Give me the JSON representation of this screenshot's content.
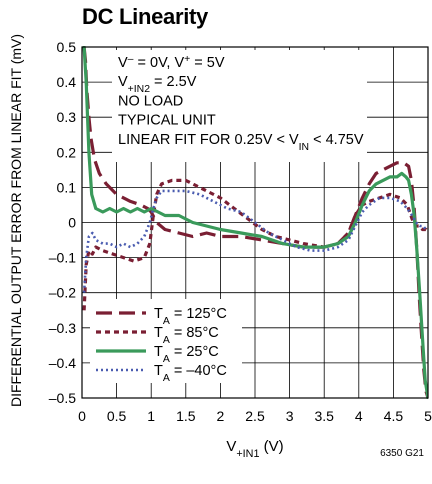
{
  "page": {
    "title": "DC Linearity",
    "figure_note": "6350 G21"
  },
  "chart_data": {
    "type": "line",
    "title": "DC Linearity",
    "xlabel": "V+IN1 (V)",
    "xlabel_main": "V",
    "xlabel_sub": "+IN1",
    "xlabel_unit": " (V)",
    "ylabel": "DIFFERENTIAL OUTPUT ERROR FROM LINEAR FIT (mV)",
    "xlim": [
      0,
      5
    ],
    "ylim": [
      -0.5,
      0.5
    ],
    "x_ticks": [
      0,
      0.5,
      1,
      1.5,
      2,
      2.5,
      3,
      3.5,
      4,
      4.5,
      5
    ],
    "x_tick_labels": [
      "0",
      "0.5",
      "1",
      "1.5",
      "2",
      "2.5",
      "3",
      "3.5",
      "4",
      "4.5",
      "5"
    ],
    "y_ticks": [
      0.5,
      0.4,
      0.3,
      0.2,
      0.1,
      0,
      -0.1,
      -0.2,
      -0.3,
      -0.4,
      -0.5
    ],
    "y_tick_labels": [
      "0.5",
      "0.4",
      "0.3",
      "0.2",
      "0.1",
      "0",
      "–0.1",
      "–0.2",
      "–0.3",
      "–0.4",
      "–0.5"
    ],
    "grid": true,
    "annotations": [
      [
        {
          "t": "V"
        },
        {
          "t": "–",
          "sup": true
        },
        {
          "t": " = 0V, V"
        },
        {
          "t": "+",
          "sup": true
        },
        {
          "t": " = 5V"
        }
      ],
      [
        {
          "t": "V"
        },
        {
          "t": "+IN2",
          "sub": true
        },
        {
          "t": " = 2.5V"
        }
      ],
      [
        {
          "t": "NO LOAD"
        }
      ],
      [
        {
          "t": "TYPICAL UNIT"
        }
      ],
      [
        {
          "t": "LINEAR FIT FOR 0.25V < V"
        },
        {
          "t": "IN",
          "sub": true
        },
        {
          "t": " < 4.75V"
        }
      ]
    ],
    "legend_position": "bottom-left",
    "series": [
      {
        "name": "TA = 125°C",
        "legend": [
          {
            "t": "T"
          },
          {
            "t": "A",
            "sub": true
          },
          {
            "t": " = 125°C"
          }
        ],
        "color": "#7a1f33",
        "style": "longdash",
        "x": [
          0.03,
          0.05,
          0.07,
          0.1,
          0.13,
          0.18,
          0.25,
          0.35,
          0.5,
          0.7,
          0.85,
          0.95,
          1.0,
          1.08,
          1.2,
          1.4,
          1.6,
          1.8,
          2.0,
          2.3,
          2.6,
          2.9,
          3.2,
          3.5,
          3.7,
          3.85,
          3.95,
          4.05,
          4.15,
          4.25,
          4.35,
          4.45,
          4.55,
          4.65,
          4.72,
          4.76,
          4.8,
          4.84,
          4.87,
          4.9,
          4.94,
          4.97,
          5.0
        ],
        "y": [
          0.5,
          0.46,
          0.38,
          0.3,
          0.24,
          0.18,
          0.14,
          0.11,
          0.08,
          0.06,
          0.05,
          0.04,
          0.03,
          0.0,
          -0.02,
          -0.03,
          -0.04,
          -0.03,
          -0.04,
          -0.04,
          -0.05,
          -0.06,
          -0.07,
          -0.07,
          -0.06,
          -0.03,
          0.02,
          0.07,
          0.11,
          0.14,
          0.15,
          0.16,
          0.17,
          0.17,
          0.16,
          0.12,
          0.04,
          -0.08,
          -0.2,
          -0.3,
          -0.42,
          -0.48,
          -0.5
        ]
      },
      {
        "name": "TA = 85°C",
        "legend": [
          {
            "t": "T"
          },
          {
            "t": "A",
            "sub": true
          },
          {
            "t": " = 85°C"
          }
        ],
        "color": "#7a1f33",
        "style": "shortdash",
        "x": [
          0.03,
          0.06,
          0.1,
          0.15,
          0.2,
          0.3,
          0.45,
          0.6,
          0.75,
          0.9,
          0.98,
          1.03,
          1.08,
          1.15,
          1.3,
          1.5,
          1.8,
          2.0,
          2.2,
          2.4,
          2.6,
          2.8,
          3.0,
          3.2,
          3.5,
          3.7,
          3.85,
          3.95,
          4.05,
          4.15,
          4.3,
          4.45,
          4.6,
          4.7,
          4.77,
          4.83,
          4.87,
          4.92,
          4.97,
          5.0
        ],
        "y": [
          -0.25,
          -0.12,
          -0.08,
          -0.09,
          -0.07,
          -0.08,
          -0.09,
          -0.1,
          -0.11,
          -0.1,
          -0.06,
          0.02,
          0.08,
          0.11,
          0.12,
          0.12,
          0.09,
          0.07,
          0.04,
          0.01,
          -0.02,
          -0.04,
          -0.05,
          -0.06,
          -0.07,
          -0.06,
          -0.03,
          0.02,
          0.05,
          0.06,
          0.07,
          0.08,
          0.07,
          0.05,
          0.01,
          -0.01,
          -0.01,
          -0.02,
          -0.02,
          -0.03
        ]
      },
      {
        "name": "TA = 25°C",
        "legend": [
          {
            "t": "T"
          },
          {
            "t": "A",
            "sub": true
          },
          {
            "t": " = 25°C"
          }
        ],
        "color": "#3a9a5b",
        "style": "solid",
        "x": [
          0.03,
          0.06,
          0.1,
          0.14,
          0.2,
          0.3,
          0.4,
          0.5,
          0.6,
          0.7,
          0.8,
          0.9,
          1.0,
          1.1,
          1.2,
          1.3,
          1.4,
          1.5,
          1.6,
          1.8,
          2.0,
          2.3,
          2.6,
          2.9,
          3.2,
          3.5,
          3.7,
          3.85,
          3.95,
          4.05,
          4.15,
          4.25,
          4.35,
          4.45,
          4.55,
          4.62,
          4.68,
          4.72,
          4.76,
          4.8,
          4.84,
          4.88,
          4.92,
          4.96,
          5.0
        ],
        "y": [
          0.5,
          0.4,
          0.2,
          0.08,
          0.04,
          0.03,
          0.04,
          0.03,
          0.04,
          0.03,
          0.04,
          0.03,
          0.04,
          0.03,
          0.02,
          0.02,
          0.02,
          0.01,
          0.0,
          -0.01,
          -0.02,
          -0.03,
          -0.04,
          -0.06,
          -0.07,
          -0.07,
          -0.06,
          -0.04,
          0.0,
          0.05,
          0.09,
          0.11,
          0.12,
          0.13,
          0.13,
          0.14,
          0.13,
          0.12,
          0.08,
          0.02,
          -0.08,
          -0.2,
          -0.33,
          -0.45,
          -0.5
        ]
      },
      {
        "name": "TA = –40°C",
        "legend": [
          {
            "t": "T"
          },
          {
            "t": "A",
            "sub": true
          },
          {
            "t": " = –40°C"
          }
        ],
        "color": "#4a5cb0",
        "style": "dotted",
        "x": [
          0.03,
          0.06,
          0.1,
          0.15,
          0.2,
          0.3,
          0.4,
          0.5,
          0.6,
          0.7,
          0.8,
          0.9,
          0.98,
          1.03,
          1.08,
          1.15,
          1.3,
          1.5,
          1.7,
          1.9,
          2.1,
          2.3,
          2.5,
          2.7,
          2.9,
          3.1,
          3.3,
          3.5,
          3.7,
          3.85,
          3.95,
          4.05,
          4.15,
          4.3,
          4.45,
          4.6,
          4.7,
          4.77,
          4.83,
          4.88,
          4.93,
          4.97,
          5.0
        ],
        "y": [
          -0.2,
          -0.1,
          -0.04,
          -0.03,
          -0.05,
          -0.06,
          -0.06,
          -0.07,
          -0.06,
          -0.07,
          -0.06,
          -0.04,
          0.0,
          0.04,
          0.07,
          0.09,
          0.09,
          0.09,
          0.08,
          0.06,
          0.04,
          0.03,
          0.0,
          -0.03,
          -0.05,
          -0.07,
          -0.08,
          -0.08,
          -0.07,
          -0.05,
          -0.01,
          0.03,
          0.05,
          0.07,
          0.07,
          0.06,
          0.04,
          0.02,
          0.0,
          -0.01,
          -0.01,
          -0.02,
          -0.02
        ]
      }
    ]
  }
}
